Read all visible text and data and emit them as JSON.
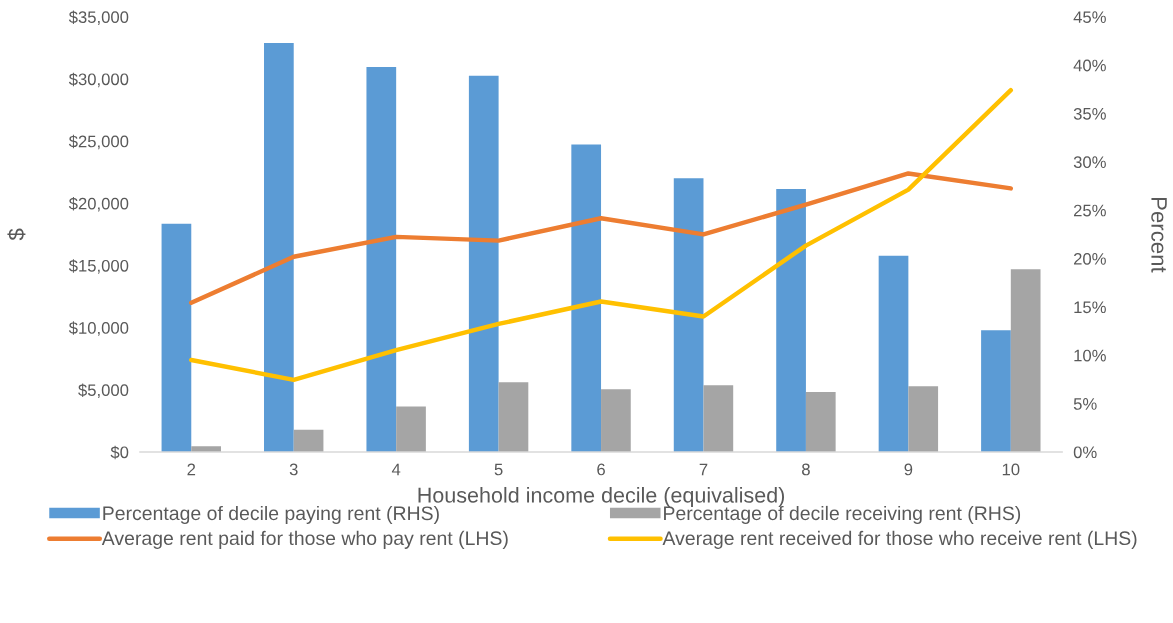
{
  "chart_data": {
    "type": "bar",
    "xlabel": "Household income decile (equivalised)",
    "ylabel": "$",
    "y2label": "Percent",
    "categories": [
      "2",
      "3",
      "4",
      "5",
      "6",
      "7",
      "8",
      "9",
      "10"
    ],
    "series": [
      {
        "name": "Percentage of decile paying rent (RHS)",
        "axis": "y2",
        "color": "#5b9bd5",
        "values": [
          23.6,
          42.3,
          39.8,
          38.9,
          31.8,
          28.3,
          27.2,
          20.3,
          12.6
        ]
      },
      {
        "name": "Percentage of decile receiving rent (RHS)",
        "axis": "y2",
        "color": "#a5a5a5",
        "values": [
          0.6,
          2.3,
          4.7,
          7.2,
          6.5,
          6.9,
          6.2,
          6.8,
          18.9
        ]
      },
      {
        "name": "Average rent paid for those who pay rent (LHS)",
        "type": "line",
        "color": "#ed7d31",
        "values": [
          12000,
          15700,
          17300,
          17000,
          18800,
          17500,
          19900,
          22400,
          21200
        ]
      },
      {
        "name": "Average rent received for those who receive rent (LHS)",
        "type": "line",
        "color": "#ffc000",
        "values": [
          7400,
          5800,
          8200,
          10300,
          12100,
          10900,
          16600,
          21100,
          29100
        ]
      }
    ],
    "ylim": [
      0,
      35000
    ],
    "yticks": [
      {
        "value": 0,
        "label": "$0"
      },
      {
        "value": 5000,
        "label": "$5,000"
      },
      {
        "value": 10000,
        "label": "$10,000"
      },
      {
        "value": 15000,
        "label": "$15,000"
      },
      {
        "value": 20000,
        "label": "$20,000"
      },
      {
        "value": 25000,
        "label": "$25,000"
      },
      {
        "value": 30000,
        "label": "$30,000"
      },
      {
        "value": 35000,
        "label": "$35,000"
      }
    ],
    "y2lim": [
      0,
      45
    ],
    "y2ticks": [
      {
        "value": 0,
        "label": "0%"
      },
      {
        "value": 5,
        "label": "5%"
      },
      {
        "value": 10,
        "label": "10%"
      },
      {
        "value": 15,
        "label": "15%"
      },
      {
        "value": 20,
        "label": "20%"
      },
      {
        "value": 25,
        "label": "25%"
      },
      {
        "value": 30,
        "label": "30%"
      },
      {
        "value": 35,
        "label": "35%"
      },
      {
        "value": 40,
        "label": "40%"
      },
      {
        "value": 45,
        "label": "45%"
      }
    ],
    "legend": "bottom"
  }
}
